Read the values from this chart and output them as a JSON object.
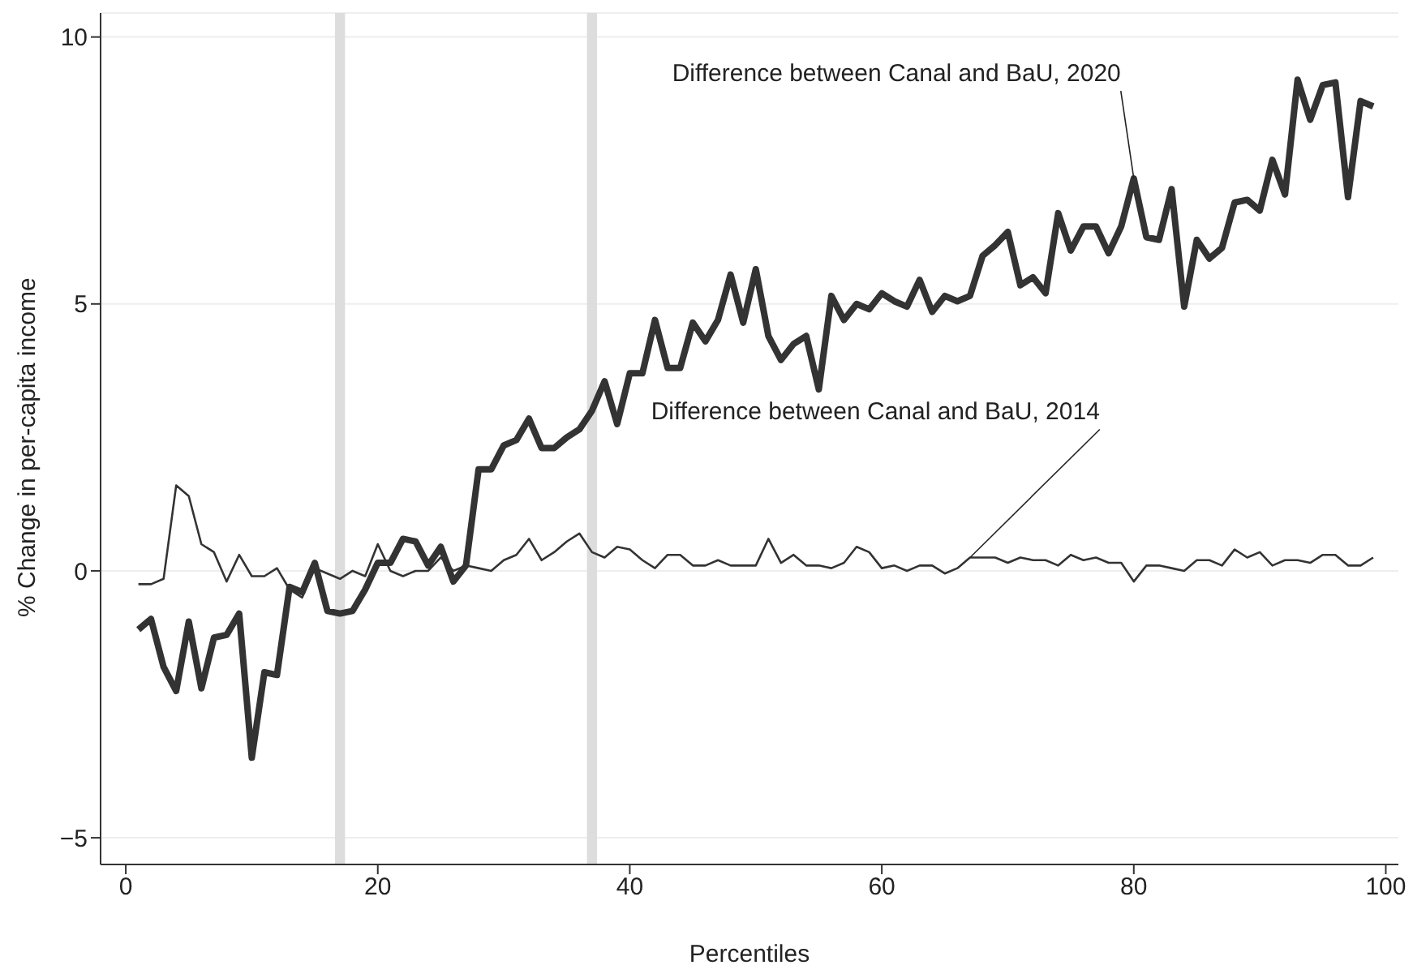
{
  "chart_data": {
    "type": "line",
    "xlabel": "Percentiles",
    "ylabel": "% Change in per-capita income",
    "x": [
      1,
      2,
      3,
      4,
      5,
      6,
      7,
      8,
      9,
      10,
      11,
      12,
      13,
      14,
      15,
      16,
      17,
      18,
      19,
      20,
      21,
      22,
      23,
      24,
      25,
      26,
      27,
      28,
      29,
      30,
      31,
      32,
      33,
      34,
      35,
      36,
      37,
      38,
      39,
      40,
      41,
      42,
      43,
      44,
      45,
      46,
      47,
      48,
      49,
      50,
      51,
      52,
      53,
      54,
      55,
      56,
      57,
      58,
      59,
      60,
      61,
      62,
      63,
      64,
      65,
      66,
      67,
      68,
      69,
      70,
      71,
      72,
      73,
      74,
      75,
      76,
      77,
      78,
      79,
      80,
      81,
      82,
      83,
      84,
      85,
      86,
      87,
      88,
      89,
      90,
      91,
      92,
      93,
      94,
      95,
      96,
      97,
      98,
      99
    ],
    "series": [
      {
        "color": "#333333",
        "values": [
          -1.1,
          -0.9,
          -1.8,
          -2.25,
          -0.95,
          -2.2,
          -1.25,
          -1.2,
          -0.8,
          -3.5,
          -1.9,
          -1.95,
          -0.3,
          -0.4,
          0.15,
          -0.75,
          -0.8,
          -0.75,
          -0.35,
          0.15,
          0.15,
          0.6,
          0.55,
          0.1,
          0.45,
          -0.2,
          0.1,
          1.9,
          1.9,
          2.35,
          2.45,
          2.85,
          2.3,
          2.3,
          2.5,
          2.65,
          3.0,
          3.55,
          2.75,
          3.7,
          3.7,
          4.7,
          3.8,
          3.8,
          4.65,
          4.3,
          4.7,
          5.55,
          4.65,
          5.65,
          4.4,
          3.95,
          4.25,
          4.4,
          3.4,
          5.15,
          4.7,
          5.0,
          4.9,
          5.2,
          5.05,
          4.95,
          5.45,
          4.85,
          5.15,
          5.05,
          5.15,
          5.9,
          6.1,
          6.35,
          5.35,
          5.5,
          5.2,
          6.7,
          6.0,
          6.45,
          6.45,
          5.95,
          6.45,
          7.35,
          6.25,
          6.2,
          7.15,
          4.95,
          6.2,
          5.85,
          6.05,
          6.9,
          6.95,
          6.75,
          7.7,
          7.05,
          9.2,
          8.45,
          9.1,
          9.15,
          7.0,
          8.8,
          8.7
        ]
      },
      {
        "color": "#333333",
        "values": [
          -0.25,
          -0.25,
          -0.15,
          1.6,
          1.4,
          0.5,
          0.35,
          -0.2,
          0.3,
          -0.1,
          -0.1,
          0.05,
          -0.35,
          -0.5,
          0.05,
          -0.05,
          -0.15,
          0.0,
          -0.1,
          0.5,
          0.0,
          -0.1,
          0.0,
          0.0,
          0.25,
          0.0,
          0.1,
          0.05,
          0.0,
          0.2,
          0.3,
          0.6,
          0.2,
          0.35,
          0.55,
          0.7,
          0.35,
          0.25,
          0.45,
          0.4,
          0.2,
          0.05,
          0.3,
          0.3,
          0.1,
          0.1,
          0.2,
          0.1,
          0.1,
          0.1,
          0.6,
          0.15,
          0.3,
          0.1,
          0.1,
          0.05,
          0.15,
          0.45,
          0.35,
          0.05,
          0.1,
          0.0,
          0.1,
          0.1,
          -0.05,
          0.05,
          0.25,
          0.25,
          0.25,
          0.15,
          0.25,
          0.2,
          0.2,
          0.1,
          0.3,
          0.2,
          0.25,
          0.15,
          0.15,
          -0.2,
          0.1,
          0.1,
          0.05,
          0.0,
          0.2,
          0.2,
          0.1,
          0.4,
          0.25,
          0.35,
          0.1,
          0.2,
          0.2,
          0.15,
          0.3,
          0.3,
          0.1,
          0.1,
          0.25
        ]
      }
    ],
    "annotations": [
      {
        "text": "Difference between Canal and BaU, 2020",
        "x": 80,
        "y": 7.35
      },
      {
        "text": "Difference between Canal and BaU, 2014",
        "x": 67,
        "y": 0.25
      }
    ],
    "bands": [
      {
        "axis": "x",
        "from": 16.6,
        "to": 17.4,
        "color": "#dddddd"
      },
      {
        "axis": "x",
        "from": 36.6,
        "to": 37.4,
        "color": "#dddddd"
      }
    ],
    "xlim": [
      -2,
      101
    ],
    "xticks": [
      0,
      20,
      40,
      60,
      80,
      100
    ],
    "ylim": [
      -5.5,
      10.45
    ],
    "yticks": [
      -5,
      0,
      5,
      10
    ],
    "grid": "y"
  }
}
